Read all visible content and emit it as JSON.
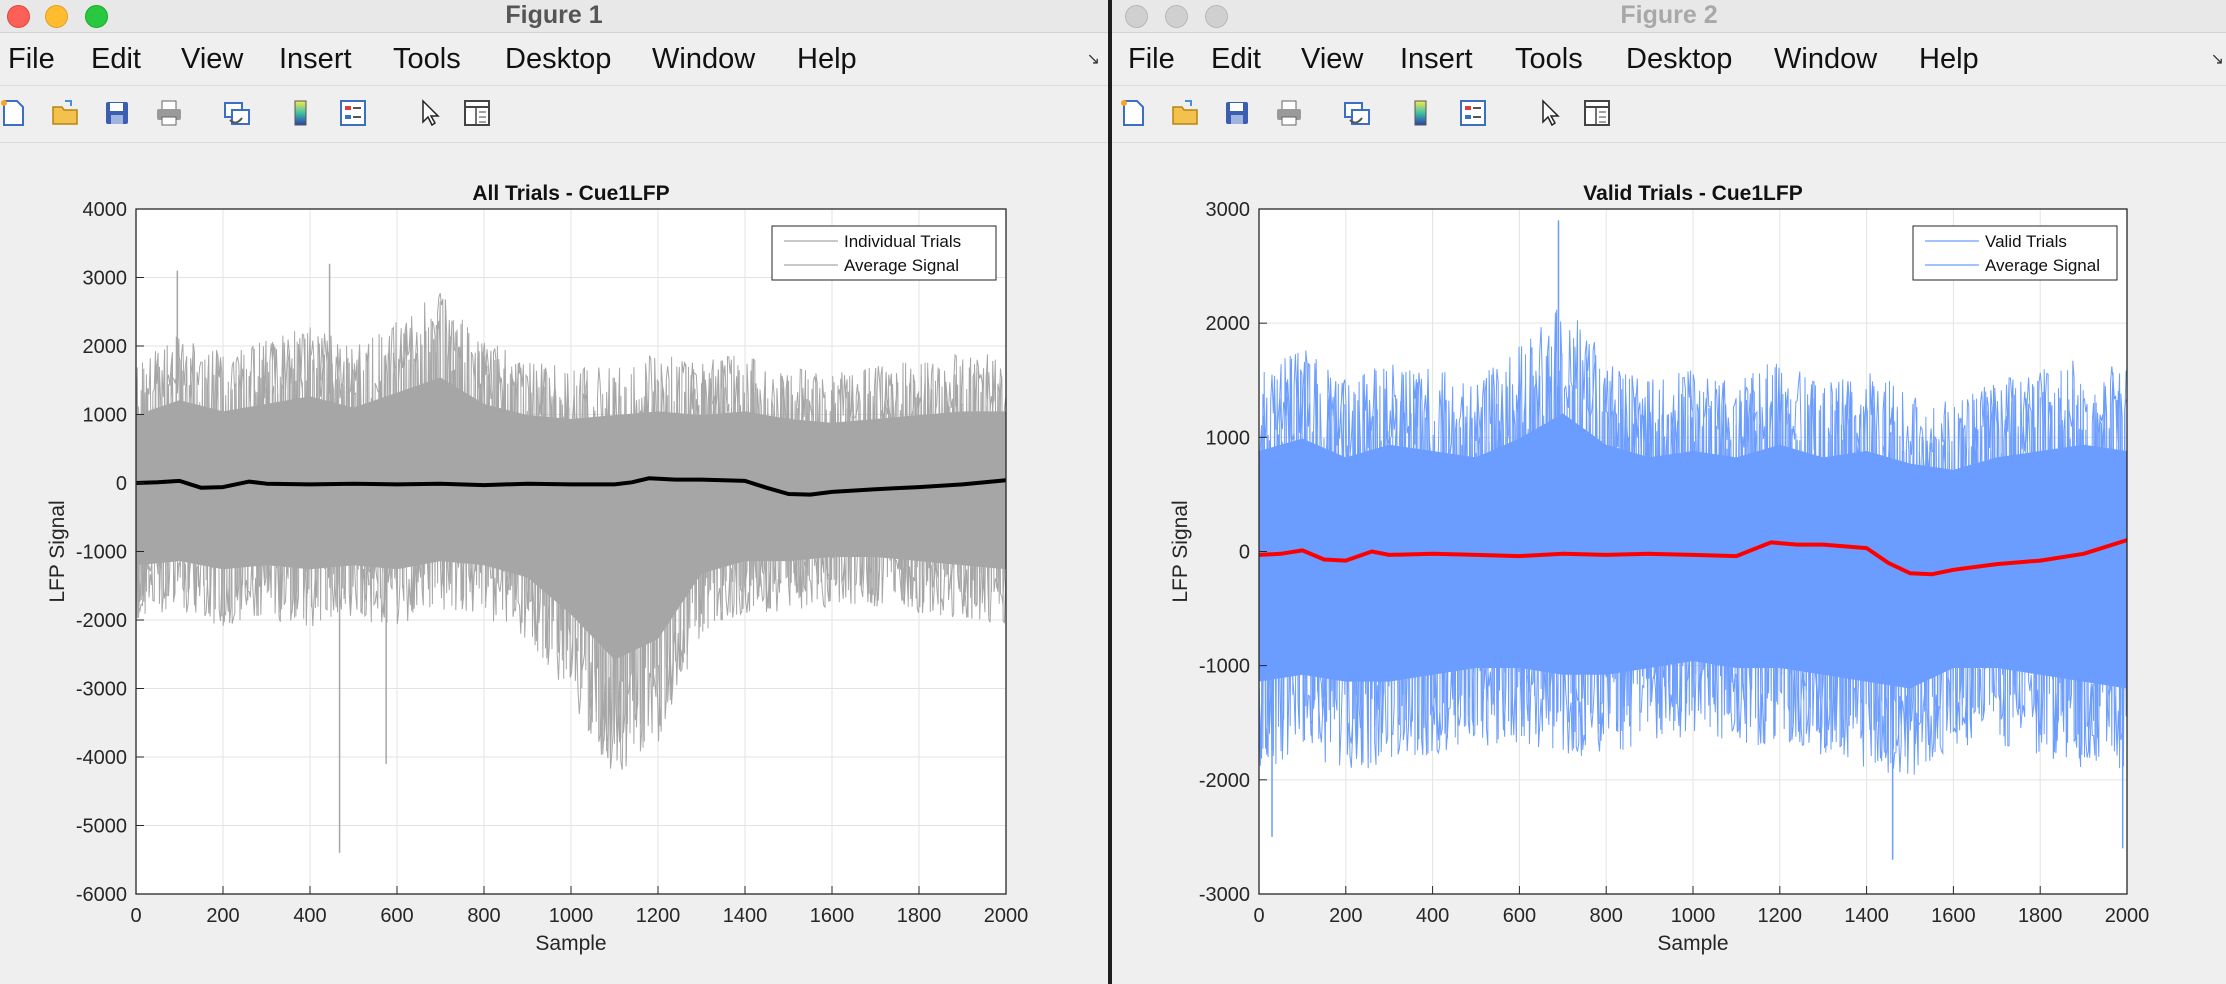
{
  "windows": [
    {
      "title": "Figure 1",
      "menu": [
        "File",
        "Edit",
        "View",
        "Insert",
        "Tools",
        "Desktop",
        "Window",
        "Help"
      ],
      "toolbar_icons": [
        "new-figure-icon",
        "open-file-icon",
        "save-icon",
        "print-icon",
        "link-plot-icon",
        "colorbar-icon",
        "legend-icon",
        "pointer-icon",
        "property-inspector-icon"
      ],
      "chart_data": {
        "type": "line",
        "title": "All Trials - Cue1LFP",
        "xlabel": "Sample",
        "ylabel": "LFP Signal",
        "xlim": [
          0,
          2000
        ],
        "ylim": [
          -6000,
          4000
        ],
        "xticks": [
          0,
          200,
          400,
          600,
          800,
          1000,
          1200,
          1400,
          1600,
          1800,
          2000
        ],
        "yticks": [
          4000,
          3000,
          2000,
          1000,
          0,
          -1000,
          -2000,
          -3000,
          -4000,
          -5000,
          -6000
        ],
        "grid": true,
        "legend_position": "top-right",
        "colors": {
          "trials": "#a6a6a6",
          "average": "#000000"
        },
        "series": [
          {
            "name": "Individual Trials",
            "kind": "band",
            "x": [
              0,
              100,
              200,
              300,
              400,
              500,
              600,
              700,
              800,
              900,
              1000,
              1100,
              1200,
              1300,
              1400,
              1500,
              1600,
              1700,
              1800,
              1900,
              2000
            ],
            "upper": [
              1800,
              2200,
              1900,
              2100,
              2300,
              2000,
              2400,
              2800,
              2100,
              1800,
              1700,
              1800,
              1900,
              1800,
              1900,
              1700,
              1600,
              1700,
              1800,
              1900,
              1900
            ],
            "lower": [
              -2000,
              -1900,
              -2100,
              -2000,
              -2100,
              -2000,
              -2100,
              -1900,
              -2000,
              -2300,
              -3200,
              -4300,
              -3800,
              -2200,
              -1900,
              -1900,
              -1800,
              -1800,
              -1900,
              -2000,
              -2100
            ]
          },
          {
            "name": "Average Signal",
            "kind": "line",
            "x": [
              0,
              50,
              100,
              150,
              200,
              260,
              300,
              400,
              500,
              600,
              700,
              800,
              900,
              1000,
              1100,
              1140,
              1180,
              1240,
              1300,
              1400,
              1450,
              1500,
              1550,
              1600,
              1700,
              1800,
              1900,
              2000
            ],
            "values": [
              0,
              10,
              30,
              -70,
              -60,
              20,
              -10,
              -20,
              -10,
              -20,
              -10,
              -30,
              -10,
              -20,
              -20,
              10,
              70,
              50,
              50,
              30,
              -70,
              -160,
              -170,
              -130,
              -90,
              -60,
              -20,
              40
            ]
          }
        ],
        "spikes": [
          {
            "x": 468,
            "y": -5400
          },
          {
            "x": 575,
            "y": -4100
          },
          {
            "x": 95,
            "y": 3100
          },
          {
            "x": 445,
            "y": 3200
          }
        ]
      }
    },
    {
      "title": "Figure 2",
      "menu": [
        "File",
        "Edit",
        "View",
        "Insert",
        "Tools",
        "Desktop",
        "Window",
        "Help"
      ],
      "toolbar_icons": [
        "new-figure-icon",
        "open-file-icon",
        "save-icon",
        "print-icon",
        "link-plot-icon",
        "colorbar-icon",
        "legend-icon",
        "pointer-icon",
        "property-inspector-icon"
      ],
      "chart_data": {
        "type": "line",
        "title": "Valid Trials - Cue1LFP",
        "xlabel": "Sample",
        "ylabel": "LFP Signal",
        "xlim": [
          0,
          2000
        ],
        "ylim": [
          -3000,
          3000
        ],
        "xticks": [
          0,
          200,
          400,
          600,
          800,
          1000,
          1200,
          1400,
          1600,
          1800,
          2000
        ],
        "yticks": [
          3000,
          2000,
          1000,
          0,
          -1000,
          -2000,
          -3000
        ],
        "grid": true,
        "legend_position": "top-right",
        "colors": {
          "trials": "#6b9cff",
          "average": "#ff0000"
        },
        "series": [
          {
            "name": "Valid Trials",
            "kind": "band",
            "x": [
              0,
              100,
              200,
              300,
              400,
              500,
              600,
              700,
              800,
              900,
              1000,
              1100,
              1200,
              1300,
              1400,
              1500,
              1600,
              1700,
              1800,
              1900,
              2000
            ],
            "upper": [
              1600,
              1800,
              1500,
              1700,
              1600,
              1500,
              1800,
              2200,
              1700,
              1500,
              1600,
              1500,
              1700,
              1500,
              1600,
              1400,
              1300,
              1500,
              1600,
              1700,
              1600
            ],
            "lower": [
              -1900,
              -1800,
              -1900,
              -1900,
              -1800,
              -1700,
              -1700,
              -1800,
              -1800,
              -1700,
              -1600,
              -1700,
              -1700,
              -1800,
              -1900,
              -2000,
              -1700,
              -1700,
              -1800,
              -1900,
              -2000
            ]
          },
          {
            "name": "Average Signal",
            "kind": "line",
            "x": [
              0,
              50,
              100,
              150,
              200,
              260,
              300,
              400,
              500,
              600,
              700,
              800,
              900,
              1000,
              1100,
              1140,
              1180,
              1240,
              1300,
              1400,
              1450,
              1500,
              1550,
              1600,
              1700,
              1800,
              1900,
              2000
            ],
            "values": [
              -30,
              -20,
              10,
              -70,
              -80,
              0,
              -30,
              -20,
              -30,
              -40,
              -20,
              -30,
              -20,
              -30,
              -40,
              20,
              80,
              60,
              60,
              30,
              -100,
              -190,
              -200,
              -160,
              -110,
              -80,
              -20,
              100
            ]
          }
        ],
        "spikes": [
          {
            "x": 690,
            "y": 2900
          },
          {
            "x": 1460,
            "y": -2700
          },
          {
            "x": 30,
            "y": -2500
          },
          {
            "x": 1990,
            "y": -2600
          }
        ]
      }
    }
  ]
}
